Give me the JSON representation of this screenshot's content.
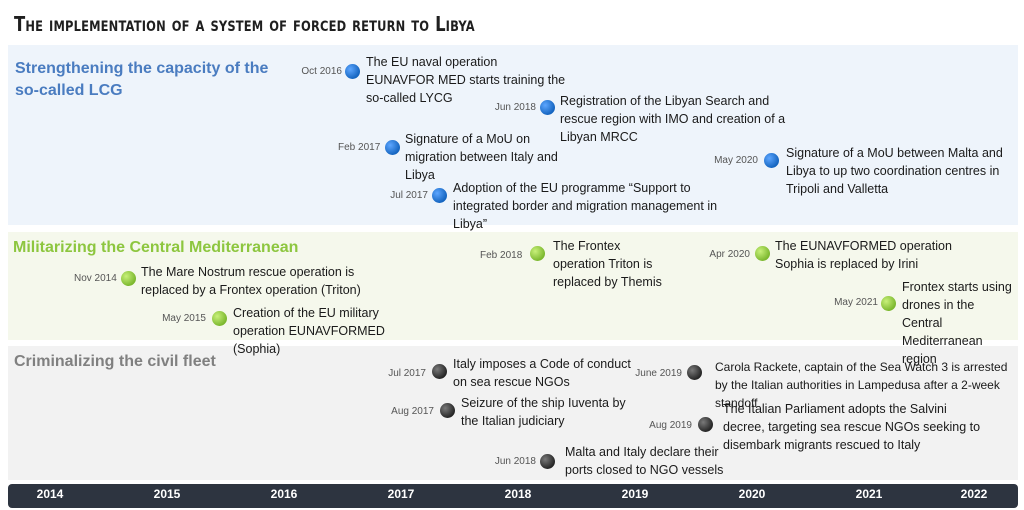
{
  "title": "The implementation of a system of forced return to Libya",
  "bands": {
    "capacity": "Strengthening the capacity of the so-called LCG",
    "militarizing": "Militarizing the Central Mediterranean",
    "criminalizing": "Criminalizing the civil fleet"
  },
  "events": [
    {
      "date": "Oct 2016",
      "text": "The EU naval operation EUNAVFOR MED starts training the so-called LYCG"
    },
    {
      "date": "Jun 2018",
      "text": "Registration of the Libyan Search and rescue region with IMO and creation of a Libyan MRCC"
    },
    {
      "date": "Feb 2017",
      "text": "Signature of a MoU on migration between Italy and Libya"
    },
    {
      "date": "May 2020",
      "text": "Signature of a MoU between Malta and Libya to up two coordination centres in Tripoli and Valletta"
    },
    {
      "date": "Jul 2017",
      "text": "Adoption of the EU programme “Support to integrated border and migration management in Libya”"
    },
    {
      "date": "Feb 2018",
      "text": "The Frontex operation Triton is replaced by Themis"
    },
    {
      "date": "Apr 2020",
      "text": "The EUNAVFORMED operation Sophia is replaced by Irini"
    },
    {
      "date": "Nov 2014",
      "text": "The Mare Nostrum rescue operation is replaced by a Frontex operation (Triton)"
    },
    {
      "date": "May 2021",
      "text": "Frontex starts using drones in the Central Mediterranean region"
    },
    {
      "date": "May 2015",
      "text": "Creation of the EU military operation EUNAVFORMED (Sophia)"
    },
    {
      "date": "Jul 2017",
      "text": "Italy imposes a Code of conduct on sea rescue NGOs"
    },
    {
      "date": "June 2019",
      "text": "Carola Rackete, captain of the Sea Watch 3 is arrested by the Italian authorities in Lampedusa after a 2-week standoff"
    },
    {
      "date": "Aug 2017",
      "text": "Seizure of the ship Iuventa by the Italian judiciary"
    },
    {
      "date": "Aug 2019",
      "text": "The Italian Parliament adopts the Salvini decree, targeting sea rescue NGOs seeking to disembark migrants rescued to Italy"
    },
    {
      "date": "Jun 2018",
      "text": "Malta and Italy declare their ports closed to NGO vessels"
    }
  ],
  "years": [
    "2014",
    "2015",
    "2016",
    "2017",
    "2018",
    "2019",
    "2020",
    "2021",
    "2022"
  ],
  "colors": {
    "capacity": "#4a7cc0",
    "militarizing": "#8dc63f",
    "criminalizing": "#808080",
    "axis": "#2d3440"
  }
}
